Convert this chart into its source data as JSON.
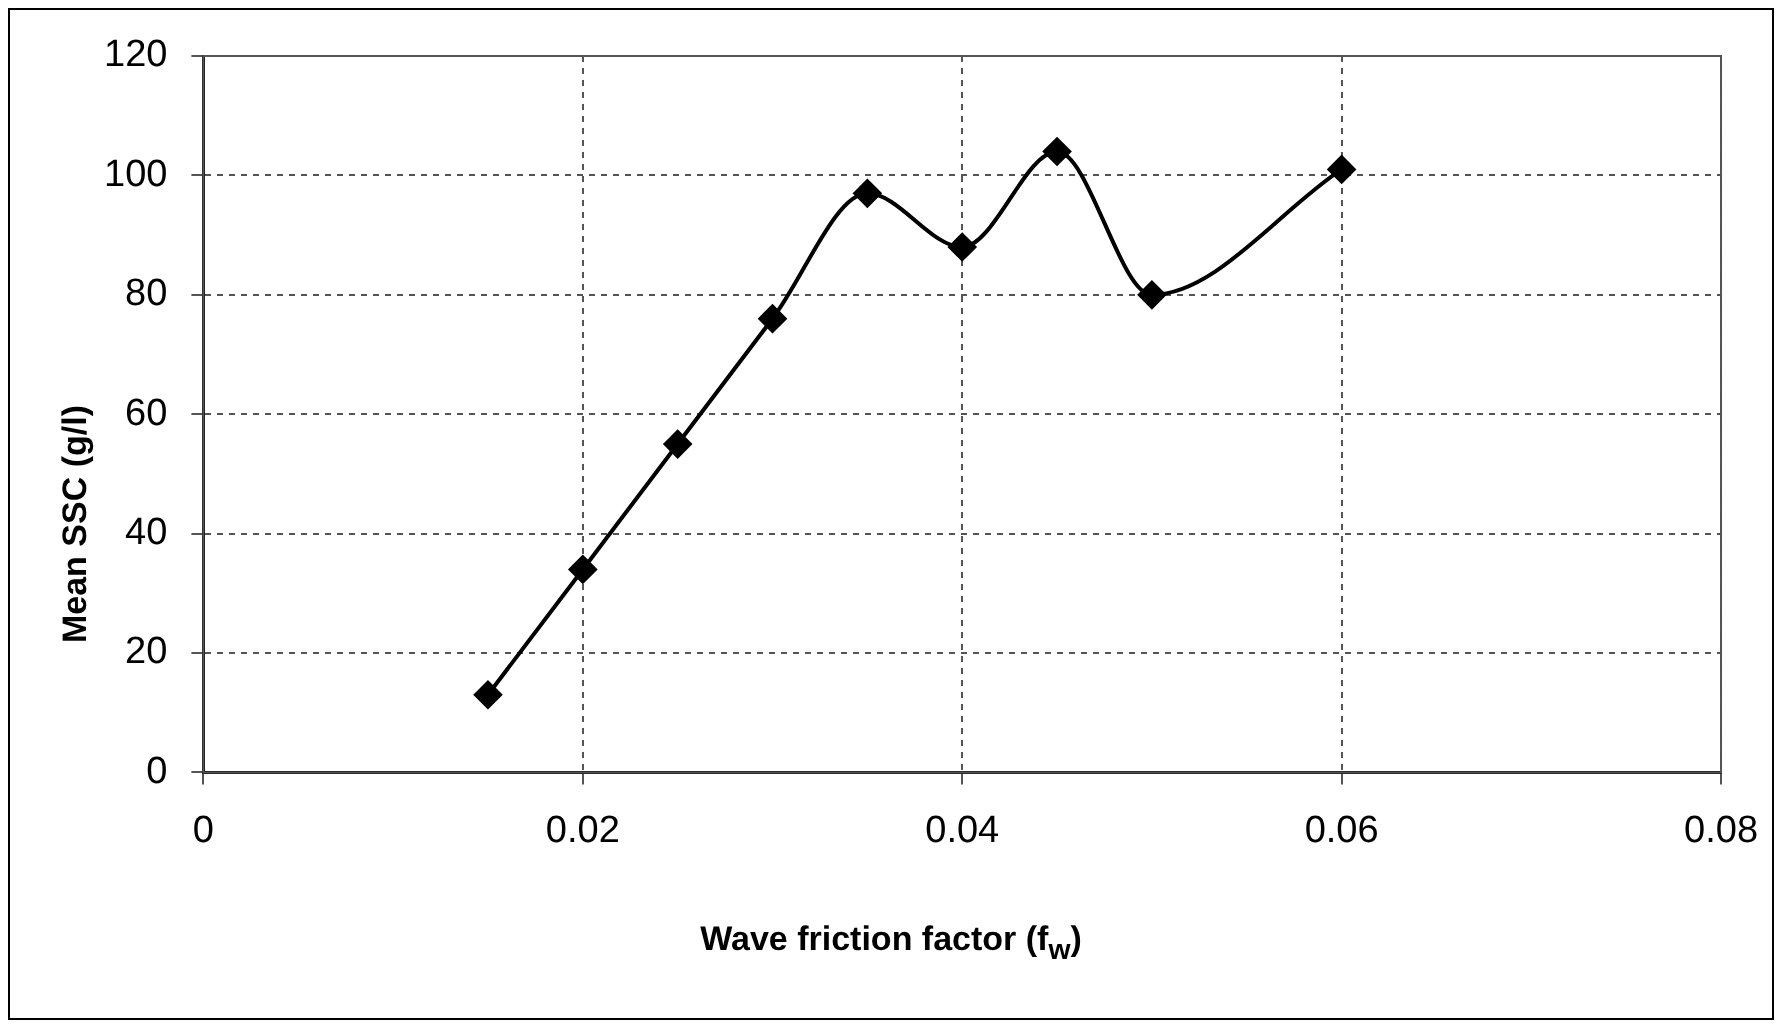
{
  "chart_data": {
    "type": "line",
    "xlabel": "Wave friction factor (f$_{w}$)",
    "ylabel": "Mean SSC (g/l)",
    "x": [
      0.015,
      0.02,
      0.025,
      0.03,
      0.035,
      0.04,
      0.045,
      0.05,
      0.06
    ],
    "series": [
      {
        "color": "#000000",
        "values": [
          13,
          34,
          55,
          76,
          97,
          88,
          104,
          80,
          101
        ]
      }
    ],
    "xlim": [
      0,
      0.08
    ],
    "xticks": [
      0,
      0.02,
      0.04,
      0.06,
      0.08
    ],
    "ylim": [
      0,
      120
    ],
    "yticks": [
      0,
      20,
      40,
      60,
      80,
      100,
      120
    ],
    "grid": true,
    "legend": false,
    "marker": "diamond",
    "line_style": "solid"
  }
}
